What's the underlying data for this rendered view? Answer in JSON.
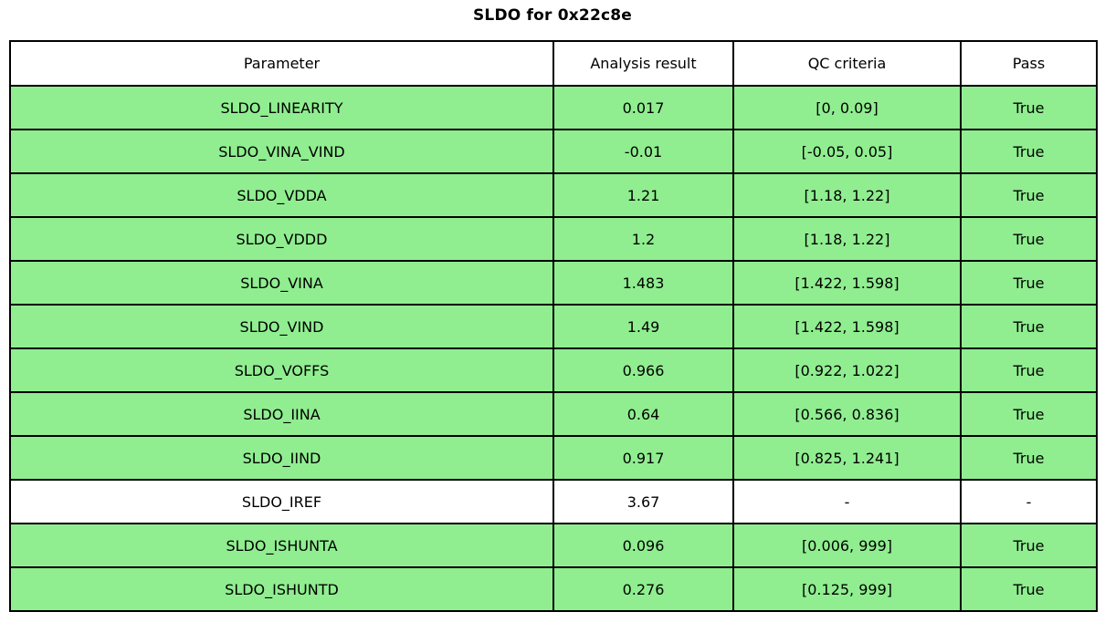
{
  "title": "SLDO for 0x22c8e",
  "colors": {
    "pass_green": "#90ee90",
    "row_default": "#ffffff",
    "border": "#000000"
  },
  "table": {
    "headers": [
      "Parameter",
      "Analysis result",
      "QC criteria",
      "Pass"
    ],
    "rows": [
      {
        "parameter": "SLDO_LINEARITY",
        "result": "0.017",
        "criteria": "[0, 0.09]",
        "pass": "True",
        "highlight": true
      },
      {
        "parameter": "SLDO_VINA_VIND",
        "result": "-0.01",
        "criteria": "[-0.05, 0.05]",
        "pass": "True",
        "highlight": true
      },
      {
        "parameter": "SLDO_VDDA",
        "result": "1.21",
        "criteria": "[1.18, 1.22]",
        "pass": "True",
        "highlight": true
      },
      {
        "parameter": "SLDO_VDDD",
        "result": "1.2",
        "criteria": "[1.18, 1.22]",
        "pass": "True",
        "highlight": true
      },
      {
        "parameter": "SLDO_VINA",
        "result": "1.483",
        "criteria": "[1.422, 1.598]",
        "pass": "True",
        "highlight": true
      },
      {
        "parameter": "SLDO_VIND",
        "result": "1.49",
        "criteria": "[1.422, 1.598]",
        "pass": "True",
        "highlight": true
      },
      {
        "parameter": "SLDO_VOFFS",
        "result": "0.966",
        "criteria": "[0.922, 1.022]",
        "pass": "True",
        "highlight": true
      },
      {
        "parameter": "SLDO_IINA",
        "result": "0.64",
        "criteria": "[0.566, 0.836]",
        "pass": "True",
        "highlight": true
      },
      {
        "parameter": "SLDO_IIND",
        "result": "0.917",
        "criteria": "[0.825, 1.241]",
        "pass": "True",
        "highlight": true
      },
      {
        "parameter": "SLDO_IREF",
        "result": "3.67",
        "criteria": "-",
        "pass": "-",
        "highlight": false
      },
      {
        "parameter": "SLDO_ISHUNTA",
        "result": "0.096",
        "criteria": "[0.006, 999]",
        "pass": "True",
        "highlight": true
      },
      {
        "parameter": "SLDO_ISHUNTD",
        "result": "0.276",
        "criteria": "[0.125, 999]",
        "pass": "True",
        "highlight": true
      }
    ]
  }
}
